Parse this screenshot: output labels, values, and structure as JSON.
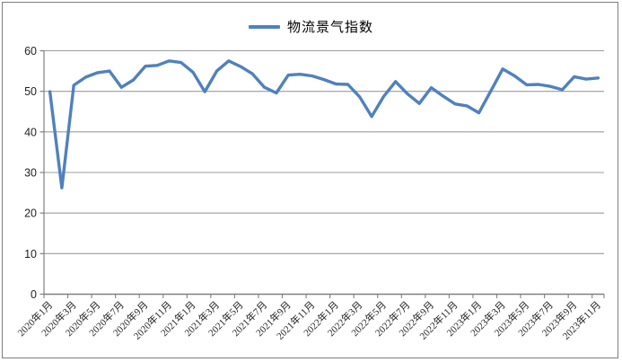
{
  "page": {
    "background": "#FFFFFF"
  },
  "colors": {
    "accent_line": "#4F81BD",
    "frame_border": "#7F7F7F",
    "gridline": "#9C9C9C",
    "axis": "#808080",
    "tick_text": "#1F1F1F"
  },
  "legend": {
    "label": "物流景气指数"
  },
  "chart_data": {
    "type": "line",
    "title": "",
    "legend_position": "top-center",
    "grid": true,
    "ylim": [
      0,
      60
    ],
    "y_ticks": [
      0,
      10,
      20,
      30,
      40,
      50,
      60
    ],
    "x_tick_step": 2,
    "x_tick_labels": [
      "2020年1月",
      "2020年3月",
      "2020年5月",
      "2020年7月",
      "2020年9月",
      "2020年11月",
      "2021年1月",
      "2021年3月",
      "2021年5月",
      "2021年7月",
      "2021年9月",
      "2021年11月",
      "2022年1月",
      "2022年3月",
      "2022年5月",
      "2022年7月",
      "2022年9月",
      "2022年11月",
      "2023年1月",
      "2023年3月",
      "2023年5月",
      "2023年7月",
      "2023年9月",
      "2023年11月"
    ],
    "x": [
      "2020年1月",
      "2020年2月",
      "2020年3月",
      "2020年4月",
      "2020年5月",
      "2020年6月",
      "2020年7月",
      "2020年8月",
      "2020年9月",
      "2020年10月",
      "2020年11月",
      "2020年12月",
      "2021年1月",
      "2021年2月",
      "2021年3月",
      "2021年4月",
      "2021年5月",
      "2021年6月",
      "2021年7月",
      "2021年8月",
      "2021年9月",
      "2021年10月",
      "2021年11月",
      "2021年12月",
      "2022年1月",
      "2022年2月",
      "2022年3月",
      "2022年4月",
      "2022年5月",
      "2022年6月",
      "2022年7月",
      "2022年8月",
      "2022年9月",
      "2022年10月",
      "2022年11月",
      "2022年12月",
      "2023年1月",
      "2023年2月",
      "2023年3月",
      "2023年4月",
      "2023年5月",
      "2023年6月",
      "2023年7月",
      "2023年8月",
      "2023年9月",
      "2023年10月",
      "2023年11月"
    ],
    "series": [
      {
        "name": "物流景气指数",
        "color": "#4F81BD",
        "values": [
          49.9,
          26.2,
          51.5,
          53.5,
          54.6,
          55.0,
          51.0,
          52.8,
          56.2,
          56.4,
          57.5,
          57.1,
          54.7,
          49.9,
          55.0,
          57.5,
          56.1,
          54.3,
          51.0,
          49.6,
          54.0,
          54.2,
          53.8,
          52.9,
          51.8,
          51.7,
          48.6,
          43.8,
          48.7,
          52.4,
          49.4,
          47.0,
          50.9,
          48.8,
          46.9,
          46.4,
          44.7,
          50.1,
          55.5,
          53.8,
          51.6,
          51.7,
          51.2,
          50.4,
          53.6,
          53.0,
          53.3
        ]
      }
    ]
  }
}
